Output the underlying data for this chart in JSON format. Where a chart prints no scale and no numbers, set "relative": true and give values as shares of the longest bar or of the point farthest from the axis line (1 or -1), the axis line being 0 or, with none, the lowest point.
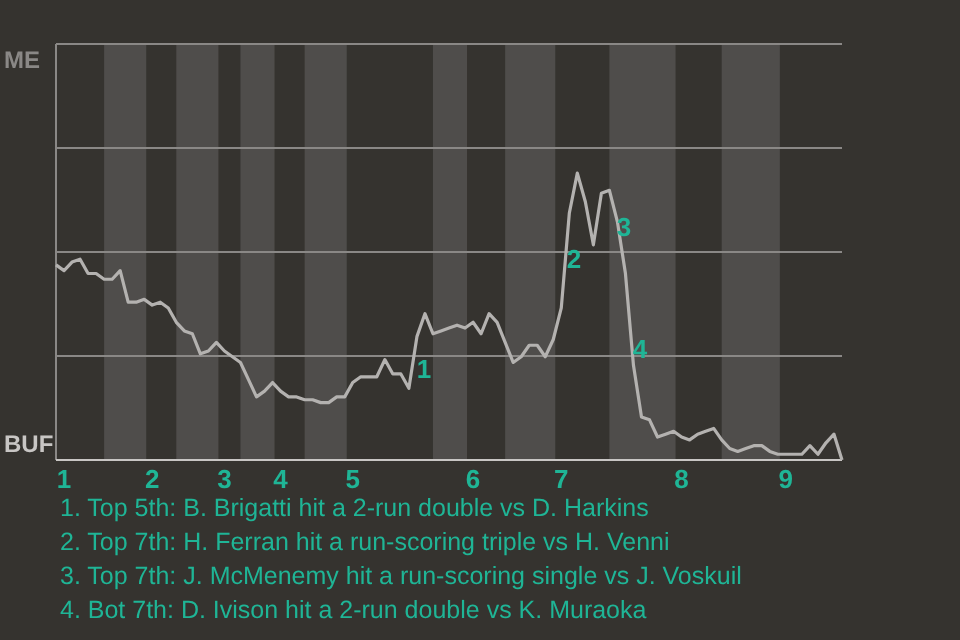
{
  "chart_data": {
    "type": "line",
    "relative": true,
    "categories": [
      null,
      "1",
      null,
      null,
      null,
      null,
      null,
      null,
      null,
      null,
      null,
      null,
      "2",
      null,
      null,
      null,
      null,
      null,
      null,
      null,
      null,
      "3",
      null,
      null,
      null,
      null,
      null,
      null,
      "4",
      null,
      null,
      null,
      null,
      null,
      null,
      null,
      null,
      "5",
      null,
      null,
      null,
      null,
      null,
      null,
      null,
      null,
      null,
      null,
      null,
      null,
      null,
      null,
      "6",
      null,
      null,
      null,
      null,
      null,
      null,
      null,
      null,
      null,
      null,
      "7",
      null,
      null,
      null,
      null,
      null,
      null,
      null,
      null,
      null,
      null,
      null,
      null,
      null,
      null,
      "8",
      null,
      null,
      null,
      null,
      null,
      null,
      null,
      null,
      null,
      null,
      null,
      null,
      "9",
      null,
      null,
      null,
      null,
      null,
      null,
      null
    ],
    "marker": "none",
    "line_style": "solid",
    "ref_lines": [
      {
        "axis": "y",
        "value": 0.3625,
        "color": "#8a8886"
      },
      {
        "axis": "y",
        "value": 0.725,
        "color": "#8a8886"
      },
      {
        "axis": "y",
        "value": 1.0875,
        "color": "#8a8886"
      }
    ],
    "series": [
      {
        "color": "#b4b2b0",
        "values": [
          0.68,
          0.66,
          0.69,
          0.7,
          0.65,
          0.65,
          0.63,
          0.63,
          0.66,
          0.55,
          0.55,
          0.56,
          0.54,
          0.55,
          0.53,
          0.48,
          0.45,
          0.44,
          0.37,
          0.38,
          0.41,
          0.38,
          0.36,
          0.34,
          0.28,
          0.22,
          0.24,
          0.27,
          0.24,
          0.22,
          0.22,
          0.21,
          0.21,
          0.2,
          0.2,
          0.22,
          0.22,
          0.27,
          0.29,
          0.29,
          0.29,
          0.35,
          0.3,
          0.3,
          0.25,
          0.43,
          0.51,
          0.44,
          0.45,
          0.46,
          0.47,
          0.46,
          0.48,
          0.44,
          0.51,
          0.48,
          0.41,
          0.34,
          0.36,
          0.4,
          0.4,
          0.36,
          0.42,
          0.53,
          0.86,
          1,
          0.9,
          0.75,
          0.93,
          0.94,
          0.83,
          0.65,
          0.33,
          0.15,
          0.14,
          0.08,
          0.09,
          0.1,
          0.08,
          0.07,
          0.09,
          0.1,
          0.11,
          0.07,
          0.04,
          0.03,
          0.04,
          0.05,
          0.05,
          0.03,
          0.02,
          0.02,
          0.02,
          0.02,
          0.05,
          0.02,
          0.06,
          0.09,
          0
        ]
      }
    ],
    "annotations": [
      "ME",
      "BUF",
      "1",
      "2",
      "3",
      "4",
      "1. Top 5th: B. Brigatti hit a 2-run double vs D. Harkins",
      "2. Top 7th: H. Ferran hit a run-scoring triple vs H. Venni",
      "3. Top 7th: J. McMenemy hit a run-scoring single vs J. Voskuil",
      "4. Bot 7th: D. Ivison hit a 2-run double vs K. Muraoka"
    ]
  }
}
